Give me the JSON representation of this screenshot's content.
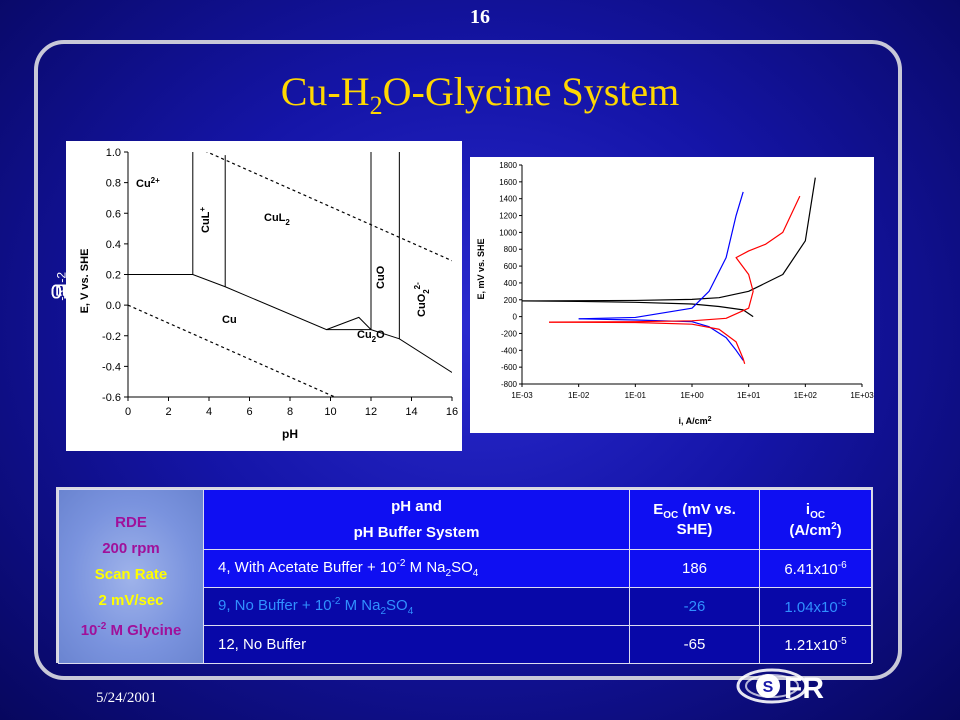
{
  "slide": {
    "number": "16",
    "date": "5/24/2001"
  },
  "title": {
    "prefix": "Cu-H",
    "sub": "2",
    "suffix": "O-Glycine System"
  },
  "side_label": {
    "cu": "Cu",
    "cu_sub": "T",
    "cu_eq": "=10",
    "cu_exp": "-5",
    "sep": " ; L",
    "l_sub": "T",
    "l_eq": "=10",
    "l_exp": "-2"
  },
  "pourbaix": {
    "ylabel": "E, V vs. SHE",
    "xlabel": "pH",
    "yticks": [
      "1.0",
      "0.8",
      "0.6",
      "0.4",
      "0.2",
      "0.0",
      "-0.2",
      "-0.4",
      "-0.6"
    ],
    "xticks": [
      "0",
      "2",
      "4",
      "6",
      "8",
      "10",
      "12",
      "14",
      "16"
    ],
    "regions": {
      "cu2": {
        "base": "Cu",
        "sup": "2+"
      },
      "cul": {
        "base": "CuL",
        "sup": "+"
      },
      "cul2": {
        "base": "CuL",
        "sub": "2"
      },
      "cuo": "CuO",
      "cuo2": {
        "base": "CuO",
        "sub": "2",
        "sup": "2-"
      },
      "cu": "Cu",
      "cu2o": {
        "base": "Cu",
        "sub": "2",
        "suffix": "O"
      }
    }
  },
  "polarization": {
    "ylabel": "E, mV vs. SHE",
    "xlabel": "i, A/cm",
    "xlabel_sup": "2",
    "yticks": [
      "1800",
      "1600",
      "1400",
      "1200",
      "1000",
      "800",
      "600",
      "400",
      "200",
      "0",
      "-200",
      "-400",
      "-600",
      "-800"
    ],
    "xticks": [
      "1E-03",
      "1E-02",
      "1E-01",
      "1E+00",
      "1E+01",
      "1E+02",
      "1E+03"
    ]
  },
  "chart_data": [
    {
      "type": "line",
      "xlabel": "pH",
      "ylabel": "E, V vs. SHE",
      "xlim": [
        0,
        16
      ],
      "ylim": [
        -0.6,
        1.0
      ],
      "series": [
        {
          "x": [
            0,
            3.2,
            4.8,
            9.8,
            12,
            13.4,
            16
          ],
          "y": [
            0.2,
            0.2,
            0.12,
            -0.16,
            -0.16,
            -0.22,
            -0.44
          ]
        },
        {
          "x": [
            3.2,
            3.2
          ],
          "y": [
            0.2,
            1.0
          ]
        },
        {
          "x": [
            4.8,
            4.8
          ],
          "y": [
            0.12,
            0.98
          ]
        },
        {
          "x": [
            12,
            12
          ],
          "y": [
            -0.16,
            1.0
          ]
        },
        {
          "x": [
            13.4,
            13.4
          ],
          "y": [
            -0.22,
            1.0
          ]
        },
        {
          "x": [
            9.8,
            11.4,
            12
          ],
          "y": [
            -0.16,
            -0.08,
            -0.16
          ]
        },
        {
          "x": [
            0,
            16
          ],
          "y": [
            1.23,
            0.29
          ]
        },
        {
          "x": [
            0,
            16
          ],
          "y": [
            0.0,
            -0.94
          ]
        }
      ]
    },
    {
      "type": "line",
      "xlabel": "i, A/cm2",
      "ylabel": "E, mV vs. SHE",
      "xlim": [
        "1E-03",
        "1E+03"
      ],
      "ylim": [
        -800,
        1800
      ],
      "series": [
        {
          "color": "#000000",
          "x": [
            "1E-03",
            "1E-02",
            "1E-01",
            "1E+00",
            "3E+00",
            "1E+01",
            "4E+01",
            "1E+02",
            "1.5E+02"
          ],
          "y": [
            186,
            188,
            192,
            205,
            225,
            300,
            500,
            900,
            1650
          ]
        },
        {
          "color": "#000000",
          "x": [
            "1E-03",
            "1E-02",
            "1E-01",
            "1E+00",
            "3E+00",
            "8E+00",
            "1.2E+01"
          ],
          "y": [
            186,
            180,
            170,
            150,
            120,
            80,
            0
          ]
        },
        {
          "color": "#0000ff",
          "x": [
            "1E-02",
            "1E-01",
            "1E+00",
            "2E+00",
            "4E+00",
            "6E+00",
            "8E+00"
          ],
          "y": [
            -26,
            -10,
            100,
            300,
            700,
            1200,
            1480
          ]
        },
        {
          "color": "#0000ff",
          "x": [
            "1E-02",
            "1E-01",
            "1E+00",
            "2E+00",
            "4E+00",
            "6E+00",
            "8E+00"
          ],
          "y": [
            -26,
            -40,
            -60,
            -120,
            -250,
            -400,
            -520
          ]
        },
        {
          "color": "#ff0000",
          "x": [
            "3E-03",
            "1E-01",
            "1E+00",
            "4E+00",
            "1E+01",
            "1.2E+01",
            "1E+01",
            "6E+00",
            "1E+01",
            "2E+01",
            "4E+01",
            "8E+01"
          ],
          "y": [
            -65,
            -60,
            -50,
            -20,
            100,
            300,
            500,
            700,
            780,
            860,
            1000,
            1430
          ]
        },
        {
          "color": "#ff0000",
          "x": [
            "3E-03",
            "1E-01",
            "1E+00",
            "3E+00",
            "6E+00",
            "8E+00",
            "8.5E+00"
          ],
          "y": [
            -65,
            -70,
            -90,
            -150,
            -300,
            -500,
            -560
          ]
        }
      ]
    }
  ],
  "table": {
    "conditions": [
      "RDE",
      "200 rpm",
      "Scan Rate",
      "2 mV/sec"
    ],
    "glycine": {
      "base": "10",
      "sup": "-2",
      "suffix": " M Glycine"
    },
    "header_ph": [
      "pH and",
      "pH Buffer System"
    ],
    "header_eoc": {
      "base": "E",
      "sub": "OC",
      "suffix": " (mV vs. SHE)"
    },
    "header_ioc": {
      "base": "i",
      "sub": "OC",
      "unit_prefix": "(A/cm",
      "unit_sup": "2",
      "unit_suffix": ")"
    },
    "rows": [
      {
        "ph_text": "4,  With Acetate Buffer + 10",
        "ph_sup": "-2",
        "ph_mid": " M Na",
        "ph_sub1": "2",
        "ph_so": "SO",
        "ph_sub2": "4",
        "eoc": "186",
        "ioc_base": "6.41x10",
        "ioc_sup": "-6"
      },
      {
        "ph_text": "9,  No Buffer + 10",
        "ph_sup": "-2",
        "ph_mid": " M Na",
        "ph_sub1": "2",
        "ph_so": "SO",
        "ph_sub2": "4",
        "eoc": "-26",
        "ioc_base": "1.04x10",
        "ioc_sup": "-5"
      },
      {
        "ph_text": "12, No Buffer",
        "eoc": "-65",
        "ioc_base": "1.21x10",
        "ioc_sup": "-5"
      }
    ]
  },
  "logo": {
    "text": "FR"
  },
  "colors": {
    "title": "#ffd700",
    "cell_blue": "#0f0ff2",
    "cell_dark": "#0808a8",
    "magenta": "#a0109a",
    "yellow": "#ffff00",
    "red": "#ff3030"
  }
}
